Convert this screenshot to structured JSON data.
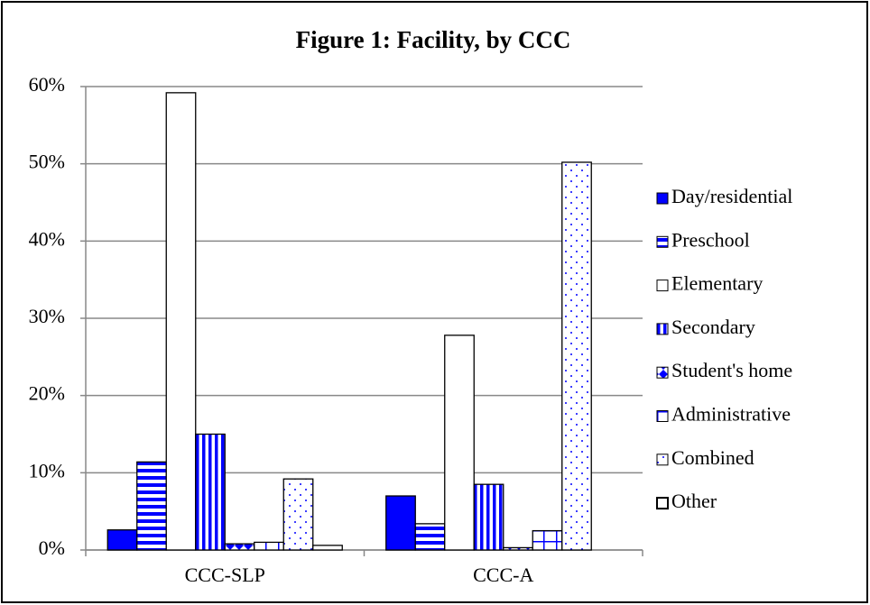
{
  "chart_data": {
    "type": "bar",
    "title": "Figure 1: Facility, by CCC",
    "categories": [
      "CCC-SLP",
      "CCC-A"
    ],
    "series": [
      {
        "name": "Day/residential",
        "color": "#0000ff",
        "pattern": "solid",
        "values": [
          2.6,
          7.0
        ]
      },
      {
        "name": "Preschool",
        "color": "#0000ff",
        "pattern": "horizontal",
        "values": [
          11.4,
          3.4
        ]
      },
      {
        "name": "Elementary",
        "color": "#000000",
        "pattern": "none",
        "values": [
          59.2,
          27.8
        ]
      },
      {
        "name": "Secondary",
        "color": "#0000ff",
        "pattern": "vertical",
        "values": [
          15.0,
          8.5
        ]
      },
      {
        "name": "Student's home",
        "color": "#0000ff",
        "pattern": "diamond",
        "values": [
          0.8,
          0.3
        ]
      },
      {
        "name": "Administrative",
        "color": "#0000ff",
        "pattern": "grid",
        "values": [
          1.0,
          2.5
        ]
      },
      {
        "name": "Combined",
        "color": "#0000ff",
        "pattern": "dots",
        "values": [
          9.2,
          50.2
        ]
      },
      {
        "name": "Other",
        "color": "#000000",
        "pattern": "none",
        "values": [
          0.6,
          0
        ]
      }
    ],
    "ylim": [
      0,
      60
    ],
    "yticks": [
      {
        "value": 0,
        "label": "0%"
      },
      {
        "value": 10,
        "label": "10%"
      },
      {
        "value": 20,
        "label": "20%"
      },
      {
        "value": 30,
        "label": "30%"
      },
      {
        "value": 40,
        "label": "40%"
      },
      {
        "value": 50,
        "label": "50%"
      },
      {
        "value": 60,
        "label": "60%"
      }
    ],
    "grid": true,
    "legend": "right"
  }
}
